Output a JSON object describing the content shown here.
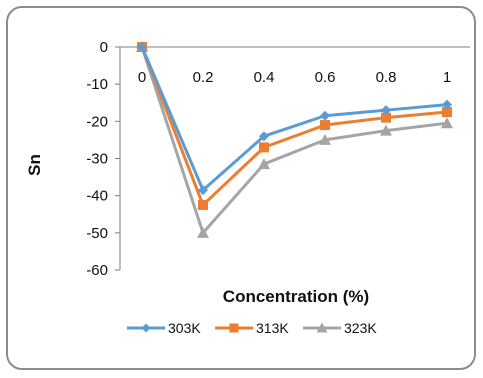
{
  "chart_data": {
    "type": "line",
    "title": "",
    "xlabel": "Concentration (%)",
    "ylabel": "Sn",
    "x": [
      0,
      0.2,
      0.4,
      0.6,
      0.8,
      1
    ],
    "x_tick_labels": [
      "0",
      "0.2",
      "0.4",
      "0.6",
      "0.8",
      "1"
    ],
    "y_ticks": [
      0,
      -10,
      -20,
      -30,
      -40,
      -50,
      -60
    ],
    "ylim": [
      -60,
      0
    ],
    "grid": false,
    "legend_position": "bottom",
    "series": [
      {
        "name": "303K",
        "color": "#5b9bd5",
        "marker": "diamond",
        "values": [
          0,
          -38.5,
          -24,
          -18.5,
          -17,
          -15.5
        ]
      },
      {
        "name": "313K",
        "color": "#ed7d31",
        "marker": "square",
        "values": [
          0,
          -42.5,
          -27,
          -21,
          -19,
          -17.5
        ]
      },
      {
        "name": "323K",
        "color": "#a5a5a5",
        "marker": "triangle",
        "values": [
          0,
          -50,
          -31.5,
          -25,
          -22.5,
          -20.5
        ]
      }
    ]
  }
}
